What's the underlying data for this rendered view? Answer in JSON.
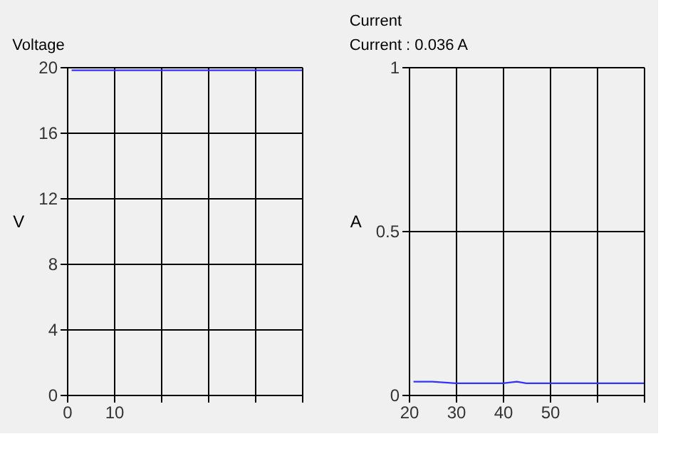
{
  "chart_data": [
    {
      "type": "line",
      "title": "Voltage",
      "ylabel": "V",
      "x": [
        1,
        5,
        10,
        15,
        20,
        25,
        30,
        35,
        40,
        45,
        50
      ],
      "series": [
        {
          "color": "#3333ff",
          "values": [
            19.8,
            19.8,
            19.8,
            19.8,
            19.8,
            19.8,
            19.8,
            19.8,
            19.8,
            19.8,
            19.8
          ]
        }
      ],
      "xlim": [
        0,
        50
      ],
      "xticks": [
        0,
        10,
        {
          "value": 20,
          "label": null
        },
        {
          "value": 30,
          "label": null
        },
        {
          "value": 40,
          "label": null
        },
        {
          "value": 50,
          "label": null
        }
      ],
      "ylim": [
        0,
        20
      ],
      "yticks": [
        0,
        4,
        8,
        12,
        16,
        20
      ],
      "grid": true,
      "marker": "none",
      "line_style": "solid"
    },
    {
      "type": "line",
      "title": "Current",
      "ylabel": "A",
      "annotations": [
        "Current : 0.036 A"
      ],
      "x": [
        21,
        25,
        30,
        35,
        40,
        43,
        45,
        50,
        55,
        60,
        65,
        70
      ],
      "series": [
        {
          "color": "#3333ff",
          "values": [
            0.04,
            0.04,
            0.035,
            0.035,
            0.035,
            0.04,
            0.035,
            0.035,
            0.035,
            0.035,
            0.035,
            0.035
          ]
        }
      ],
      "xlim": [
        20,
        70
      ],
      "xticks": [
        20,
        30,
        40,
        50,
        {
          "value": 60,
          "label": null
        },
        {
          "value": 70,
          "label": null
        }
      ],
      "ylim": [
        0,
        1
      ],
      "yticks": [
        0,
        0.5,
        1
      ],
      "grid": true,
      "marker": "none",
      "line_style": "solid"
    }
  ]
}
